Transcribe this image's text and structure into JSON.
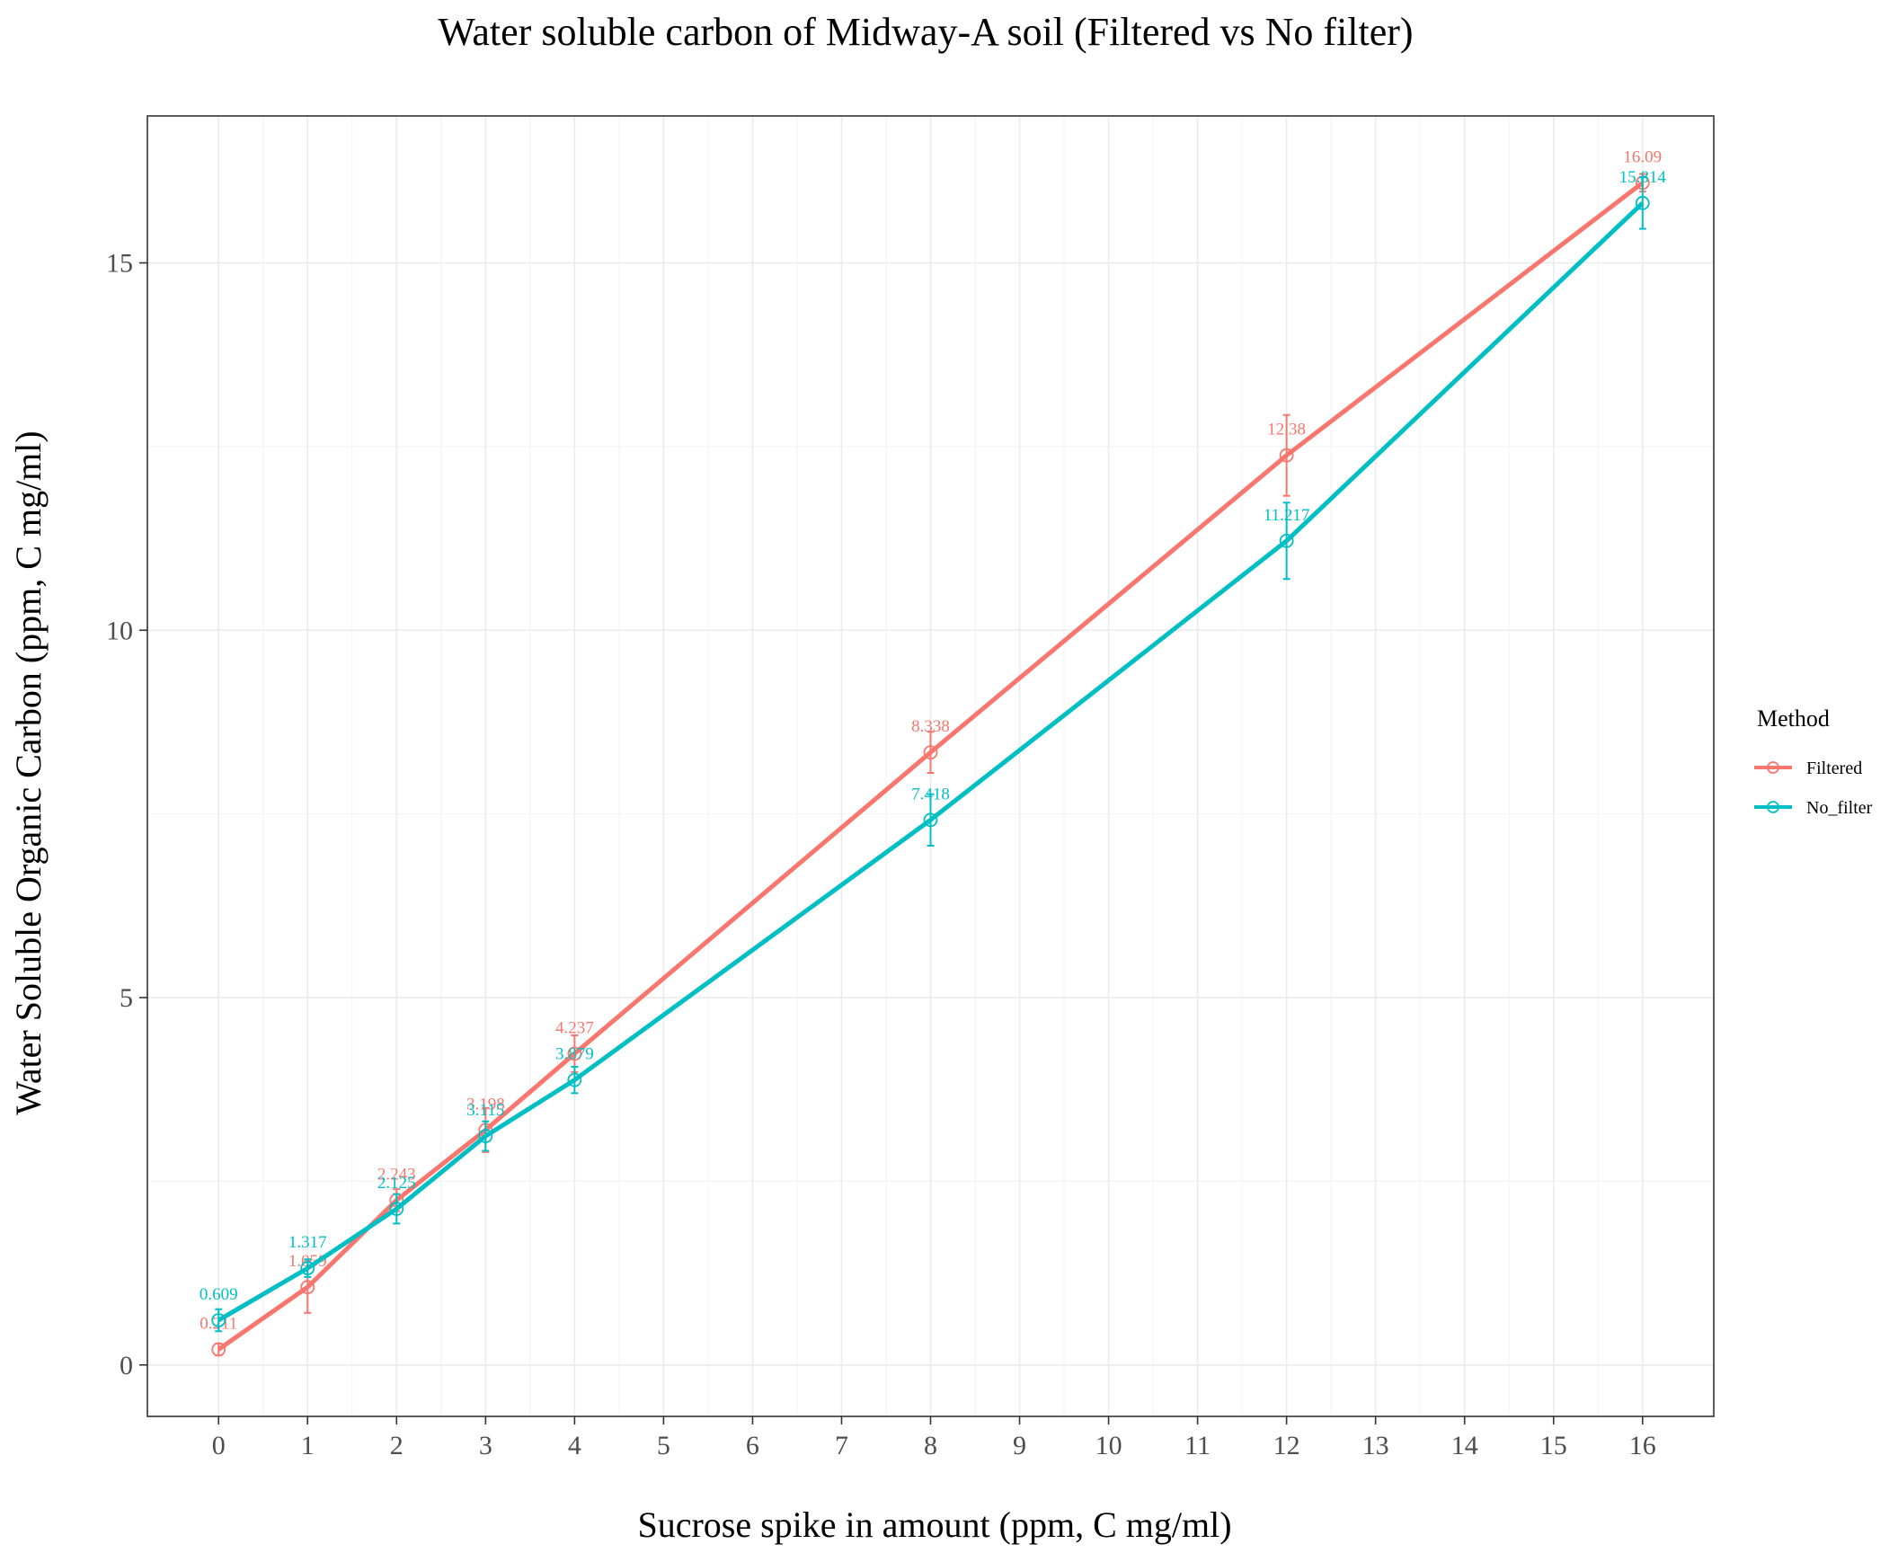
{
  "chart_data": {
    "type": "line",
    "title": "Water soluble carbon of Midway-A soil (Filtered vs No filter)",
    "xlabel": "Sucrose spike in amount (ppm, C mg/ml)",
    "ylabel": "Water Soluble Organic Carbon (ppm, C mg/ml)",
    "xlim": [
      -0.8,
      16.8
    ],
    "ylim": [
      -0.7,
      17.0
    ],
    "x_ticks": [
      0,
      1,
      2,
      3,
      4,
      5,
      6,
      7,
      8,
      9,
      10,
      11,
      12,
      13,
      14,
      15,
      16
    ],
    "y_ticks": [
      0,
      5,
      10,
      15
    ],
    "grid": true,
    "legend": {
      "title": "Method",
      "position": "right"
    },
    "series": [
      {
        "name": "Filtered",
        "color": "#F8766D",
        "x": [
          0,
          1,
          2,
          3,
          4,
          8,
          12,
          16
        ],
        "y": [
          0.211,
          1.059,
          2.243,
          3.198,
          4.237,
          8.338,
          12.38,
          16.09
        ],
        "labels": [
          "0.211",
          "1.059",
          "2.243",
          "3.198",
          "4.237",
          "8.338",
          "12.38",
          "16.09"
        ],
        "error": [
          0.08,
          0.35,
          0.15,
          0.3,
          0.25,
          0.28,
          0.55,
          0.12
        ]
      },
      {
        "name": "No_filter",
        "color": "#00BFC4",
        "x": [
          0,
          1,
          2,
          3,
          4,
          8,
          12,
          16
        ],
        "y": [
          0.609,
          1.317,
          2.125,
          3.115,
          3.879,
          7.418,
          11.217,
          15.814
        ],
        "labels": [
          "0.609",
          "1.317",
          "2.125",
          "3.115",
          "3.879",
          "7.418",
          "11.217",
          "15.814"
        ],
        "error": [
          0.15,
          0.12,
          0.2,
          0.2,
          0.18,
          0.35,
          0.52,
          0.35
        ]
      }
    ]
  }
}
